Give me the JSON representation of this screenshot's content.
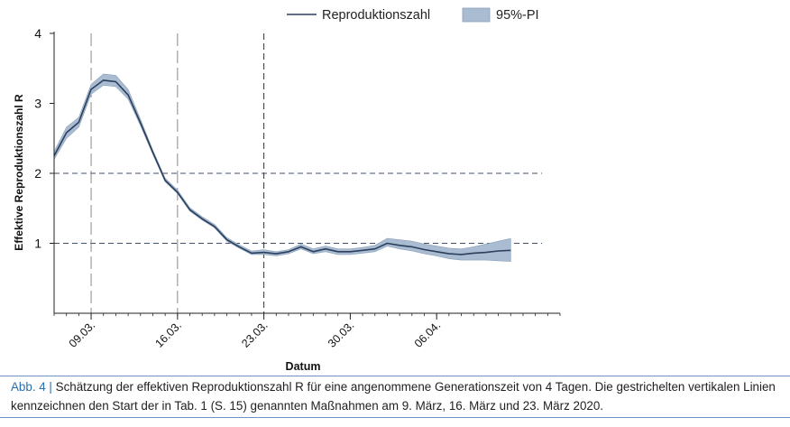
{
  "chart_data": {
    "type": "line",
    "title": "",
    "xlabel": "Datum",
    "ylabel": "Effektive Reproduktionszahl R",
    "ylim": [
      0,
      4
    ],
    "yticks": [
      1,
      2,
      3,
      4
    ],
    "xlim": [
      -3,
      38
    ],
    "day_origin": "09.03.",
    "xticks": [
      {
        "day": 0,
        "label": "09.03."
      },
      {
        "day": 7,
        "label": "16.03."
      },
      {
        "day": 14,
        "label": "23.03."
      },
      {
        "day": 21,
        "label": "30.03."
      },
      {
        "day": 28,
        "label": "06.04."
      }
    ],
    "hlines": [
      1,
      2
    ],
    "vlines": [
      {
        "day": 0,
        "style": "long-dash"
      },
      {
        "day": 7,
        "style": "long-dash"
      },
      {
        "day": 14,
        "style": "dash"
      }
    ],
    "legend": {
      "position": "top",
      "line_label": "Reproduktionszahl",
      "band_label": "95%-PI"
    },
    "series": [
      {
        "name": "Reproduktionszahl",
        "x": [
          -3,
          -2,
          -1,
          0,
          1,
          2,
          3,
          4,
          5,
          6,
          7,
          8,
          9,
          10,
          11,
          12,
          13,
          14,
          15,
          16,
          17,
          18,
          19,
          20,
          21,
          22,
          23,
          24,
          25,
          26,
          27,
          28,
          29,
          30,
          31,
          32,
          33,
          34
        ],
        "values": [
          2.25,
          2.58,
          2.73,
          3.2,
          3.33,
          3.31,
          3.12,
          2.72,
          2.3,
          1.9,
          1.73,
          1.48,
          1.35,
          1.24,
          1.05,
          0.95,
          0.86,
          0.87,
          0.85,
          0.88,
          0.95,
          0.88,
          0.92,
          0.88,
          0.88,
          0.9,
          0.92,
          1.0,
          0.97,
          0.95,
          0.91,
          0.88,
          0.85,
          0.84,
          0.86,
          0.87,
          0.89,
          0.9
        ],
        "lower": [
          2.2,
          2.5,
          2.66,
          3.13,
          3.26,
          3.24,
          3.06,
          2.68,
          2.27,
          1.88,
          1.71,
          1.46,
          1.33,
          1.22,
          1.03,
          0.93,
          0.84,
          0.84,
          0.82,
          0.85,
          0.92,
          0.85,
          0.88,
          0.84,
          0.84,
          0.86,
          0.88,
          0.96,
          0.92,
          0.89,
          0.85,
          0.82,
          0.78,
          0.76,
          0.76,
          0.76,
          0.75,
          0.74
        ],
        "upper": [
          2.31,
          2.66,
          2.8,
          3.27,
          3.42,
          3.4,
          3.2,
          2.77,
          2.33,
          1.93,
          1.76,
          1.51,
          1.38,
          1.27,
          1.08,
          0.98,
          0.89,
          0.91,
          0.88,
          0.91,
          0.99,
          0.92,
          0.96,
          0.92,
          0.92,
          0.94,
          0.97,
          1.07,
          1.05,
          1.03,
          0.99,
          0.96,
          0.93,
          0.92,
          0.95,
          0.99,
          1.03,
          1.07
        ]
      }
    ]
  },
  "caption": {
    "label": "Abb. 4 |",
    "text": " Schätzung der effektiven Reproduktionszahl R für eine angenommene Generationszeit von 4 Tagen. Die gestrichelten vertikalen Linien kennzeichnen den Start der in Tab. 1 (S. 15) genannten Maßnahmen am 9. März, 16. März und 23. März 2020."
  },
  "colors": {
    "line": "#2b3f5e",
    "band": "#a9bcd1",
    "band_edge": "#8aa0ba",
    "grid": "#3e4f69",
    "vline": "#8a8a8a",
    "axis": "#222222"
  }
}
